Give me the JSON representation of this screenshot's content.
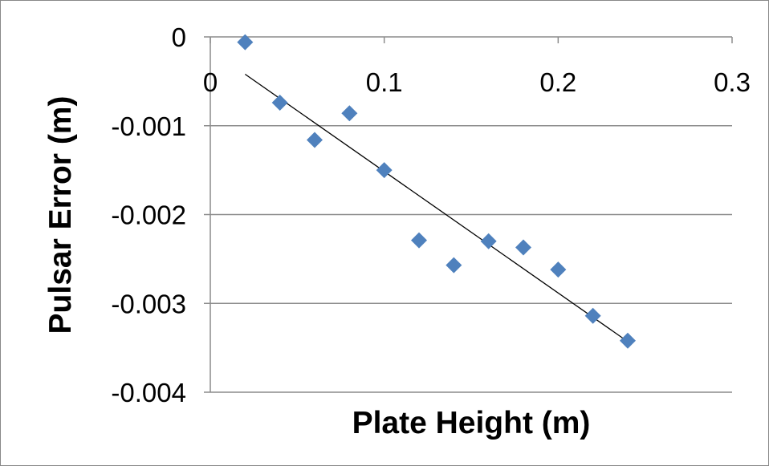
{
  "chart_data": {
    "type": "scatter",
    "xlabel": "Plate Height (m)",
    "ylabel": "Pulsar Error (m)",
    "xlim": [
      0,
      0.3
    ],
    "ylim": [
      -0.004,
      0
    ],
    "x_ticks": [
      "0",
      "0.1",
      "0.2",
      "0.3"
    ],
    "y_ticks": [
      "0",
      "-0.001",
      "-0.002",
      "-0.003",
      "-0.004"
    ],
    "grid": "horizontal",
    "legend": "none",
    "series": [
      {
        "marker": "diamond",
        "color": "#4F81BD",
        "x": [
          0.02,
          0.04,
          0.06,
          0.08,
          0.1,
          0.12,
          0.14,
          0.16,
          0.18,
          0.2,
          0.22,
          0.24
        ],
        "y": [
          -6e-05,
          -0.00074,
          -0.00116,
          -0.00086,
          -0.0015,
          -0.00229,
          -0.00257,
          -0.0023,
          -0.00237,
          -0.00262,
          -0.00314,
          -0.00342
        ]
      }
    ],
    "trendline": {
      "type": "linear",
      "color": "#000000",
      "x": [
        0.02,
        0.24
      ],
      "y": [
        -0.00042,
        -0.00343
      ]
    }
  }
}
